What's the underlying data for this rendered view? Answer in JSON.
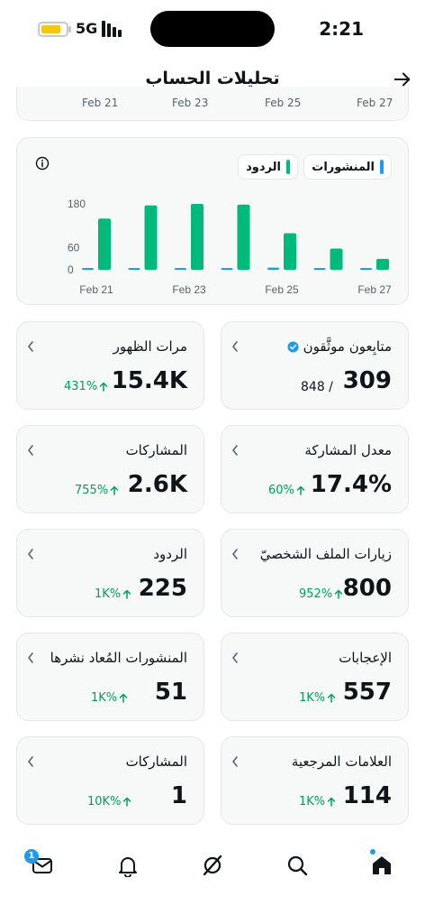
{
  "status_bar": {
    "network": "5G",
    "time": "2:21",
    "battery_color": "#f6c614"
  },
  "header": {
    "title": "تحليلات الحساب",
    "back_icon": "arrow-right-icon"
  },
  "top_chart_ticks": [
    "Feb 21",
    "Feb 23",
    "Feb 25",
    "Feb 27"
  ],
  "legend": {
    "posts": "المنشورات",
    "replies": "الردود",
    "posts_color": "#1d9bf0",
    "replies_color": "#00ba7c"
  },
  "chart_data": {
    "type": "bar",
    "categories": [
      "Feb 21",
      "Feb 22",
      "Feb 23",
      "Feb 24",
      "Feb 25",
      "Feb 26",
      "Feb 27"
    ],
    "x_tick_labels": [
      "Feb 21",
      "Feb 23",
      "Feb 25",
      "Feb 27"
    ],
    "y_tick_labels": [
      "180",
      "60",
      "0"
    ],
    "ylim": [
      0,
      180
    ],
    "series": [
      {
        "name": "المنشورات",
        "values": [
          2,
          3,
          4,
          5,
          6,
          4,
          3
        ]
      },
      {
        "name": "الردود",
        "values": [
          140,
          176,
          180,
          178,
          100,
          58,
          30
        ]
      }
    ],
    "grid": false,
    "legend_position": "top-right"
  },
  "metrics": [
    {
      "title": "متابِعون موثَّقون",
      "value": "309",
      "sub": "848 /",
      "verified": true
    },
    {
      "title": "مرات الظهور",
      "value": "15.4K",
      "change": "431%"
    },
    {
      "title": "معدل المشاركة",
      "value": "17.4%",
      "change": "60%"
    },
    {
      "title": "المشاركات",
      "value": "2.6K",
      "change": "755%"
    },
    {
      "title": "زيارات الملف الشخصيّ",
      "value": "800",
      "change": "952%"
    },
    {
      "title": "الردود",
      "value": "225",
      "change": "1K%"
    },
    {
      "title": "الإعجابات",
      "value": "557",
      "change": "1K%"
    },
    {
      "title": "المنشورات المُعاد نشرها",
      "value": "51",
      "change": "1K%"
    },
    {
      "title": "العلامات المرجعية",
      "value": "114",
      "change": "1K%"
    },
    {
      "title": "المشاركات",
      "value": "1",
      "change": "10K%"
    }
  ],
  "change_color": "#00a05a",
  "nav": {
    "items": [
      "mail-icon",
      "bell-icon",
      "grok-icon",
      "search-icon",
      "home-icon"
    ],
    "mail_badge": "1",
    "accent": "#1d9bf0"
  }
}
